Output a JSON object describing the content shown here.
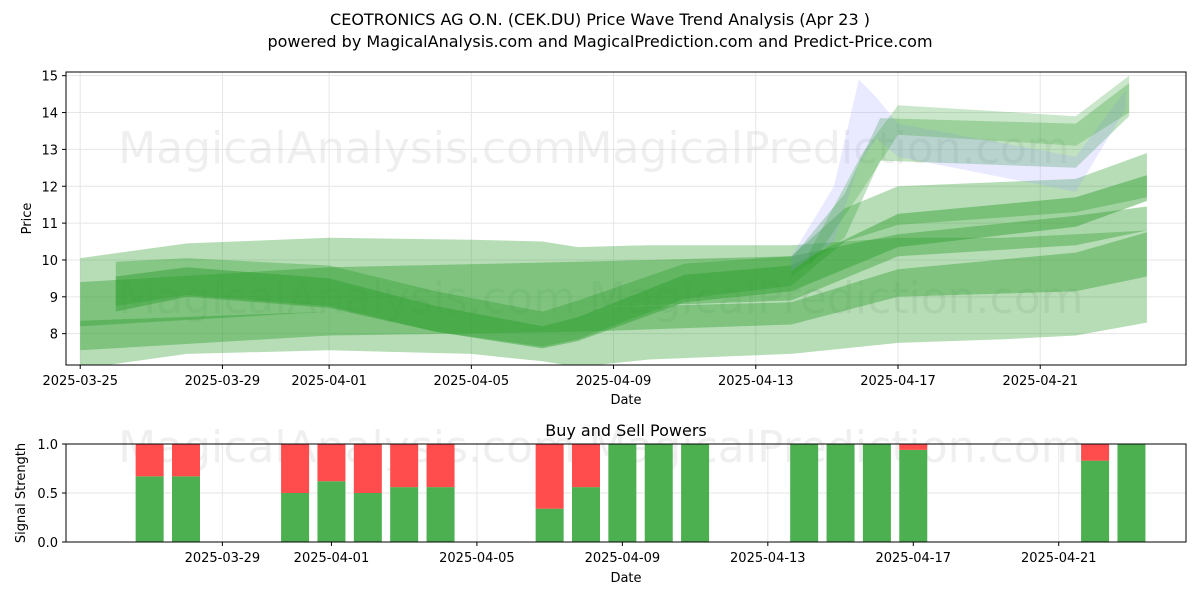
{
  "title": "CEOTRONICS AG O.N. (CEK.DU) Price Wave Trend Analysis (Apr 23 )",
  "subtitle": "powered by MagicalAnalysis.com and MagicalPrediction.com and Predict-Price.com",
  "watermarks": [
    "MagicalAnalysis.com",
    "MagicalPrediction.com"
  ],
  "colors": {
    "green_band": "#2e9e2e",
    "blue_band": "#9aa0ff",
    "buy": "#4caf50",
    "sell": "#ff4c4c"
  },
  "chart_data": [
    {
      "type": "area",
      "title": "",
      "xlabel": "Date",
      "ylabel": "Price",
      "xlim": [
        "2025-03-24.6",
        "2025-04-25.1"
      ],
      "ylim": [
        7.15,
        15.1
      ],
      "x_ticks": [
        "2025-03-25",
        "2025-03-29",
        "2025-04-01",
        "2025-04-05",
        "2025-04-09",
        "2025-04-13",
        "2025-04-17",
        "2025-04-21"
      ],
      "y_ticks": [
        8,
        9,
        10,
        11,
        12,
        13,
        14,
        15
      ],
      "grid": true,
      "series": [
        {
          "color": "green",
          "opacity": 0.35,
          "x": [
            "2025-03-25",
            "2025-03-28",
            "2025-04-01",
            "2025-04-05",
            "2025-04-07",
            "2025-04-08",
            "2025-04-10",
            "2025-04-14",
            "2025-04-17",
            "2025-04-20",
            "2025-04-22",
            "2025-04-24"
          ],
          "upper": [
            10.05,
            10.45,
            10.6,
            10.55,
            10.5,
            10.35,
            10.4,
            10.4,
            10.6,
            10.6,
            10.7,
            10.8
          ],
          "lower": [
            7.05,
            7.45,
            7.55,
            7.45,
            7.25,
            7.1,
            7.3,
            7.45,
            7.75,
            7.85,
            7.95,
            8.3
          ]
        },
        {
          "color": "green",
          "opacity": 0.4,
          "x": [
            "2025-03-25",
            "2025-04-01",
            "2025-04-08",
            "2025-04-14",
            "2025-04-17",
            "2025-04-22",
            "2025-04-24"
          ],
          "upper": [
            8.35,
            8.6,
            8.7,
            8.85,
            9.75,
            10.2,
            10.75
          ],
          "lower": [
            7.55,
            7.95,
            8.05,
            8.25,
            9.0,
            9.15,
            9.55
          ]
        },
        {
          "color": "green",
          "opacity": 0.4,
          "x": [
            "2025-03-25",
            "2025-04-01",
            "2025-04-08",
            "2025-04-14",
            "2025-04-17",
            "2025-04-22",
            "2025-04-24"
          ],
          "upper": [
            9.4,
            9.8,
            9.95,
            10.1,
            10.7,
            11.2,
            11.45
          ],
          "lower": [
            8.2,
            8.6,
            8.7,
            8.9,
            10.1,
            10.4,
            10.8
          ]
        },
        {
          "color": "green",
          "opacity": 0.45,
          "x": [
            "2025-03-26",
            "2025-03-28",
            "2025-04-01",
            "2025-04-04",
            "2025-04-07",
            "2025-04-08",
            "2025-04-11",
            "2025-04-14",
            "2025-04-17",
            "2025-04-22",
            "2025-04-24"
          ],
          "upper": [
            9.55,
            9.8,
            9.5,
            8.75,
            8.2,
            8.45,
            9.6,
            9.85,
            11.25,
            11.7,
            12.3
          ],
          "lower": [
            8.6,
            9.0,
            8.7,
            8.05,
            7.6,
            7.8,
            8.85,
            9.15,
            10.35,
            10.9,
            11.6
          ]
        },
        {
          "color": "green",
          "opacity": 0.35,
          "x": [
            "2025-03-26",
            "2025-03-28",
            "2025-04-01",
            "2025-04-04",
            "2025-04-07",
            "2025-04-08",
            "2025-04-11",
            "2025-04-14",
            "2025-04-15.5",
            "2025-04-17",
            "2025-04-22",
            "2025-04-24"
          ],
          "upper": [
            9.95,
            10.05,
            9.85,
            9.15,
            8.6,
            8.9,
            9.9,
            10.1,
            11.4,
            12.0,
            12.2,
            12.9
          ],
          "lower": [
            8.75,
            9.05,
            8.75,
            8.05,
            7.65,
            7.85,
            8.95,
            9.3,
            10.5,
            10.95,
            11.3,
            11.7
          ]
        },
        {
          "color": "green",
          "opacity": 0.3,
          "x": [
            "2025-04-14",
            "2025-04-15.5",
            "2025-04-16.5",
            "2025-04-22",
            "2025-04-23.5"
          ],
          "upper": [
            10.05,
            11.8,
            13.85,
            13.7,
            14.8
          ],
          "lower": [
            9.55,
            10.6,
            12.7,
            12.5,
            13.9
          ]
        },
        {
          "color": "blue",
          "opacity": 0.22,
          "x": [
            "2025-04-14",
            "2025-04-15.2",
            "2025-04-15.9",
            "2025-04-16.4",
            "2025-04-17",
            "2025-04-22",
            "2025-04-23.4"
          ],
          "upper": [
            10.1,
            12.0,
            14.9,
            14.4,
            13.7,
            12.8,
            14.6
          ],
          "lower": [
            9.7,
            10.5,
            12.6,
            13.3,
            12.8,
            11.85,
            14.1
          ]
        },
        {
          "color": "green",
          "opacity": 0.25,
          "x": [
            "2025-04-14.5",
            "2025-04-16",
            "2025-04-17",
            "2025-04-22",
            "2025-04-23.5"
          ],
          "upper": [
            10.2,
            12.9,
            14.2,
            13.9,
            15.0
          ],
          "lower": [
            9.8,
            11.9,
            13.4,
            13.1,
            14.0
          ]
        }
      ]
    },
    {
      "type": "bar",
      "title": "Buy and Sell Powers",
      "xlabel": "Date",
      "ylabel": "Signal Strength",
      "ylim": [
        0,
        1
      ],
      "y_ticks": [
        "0.0",
        "0.5",
        "1.0"
      ],
      "x_ticks": [
        "2025-03-29",
        "2025-04-01",
        "2025-04-05",
        "2025-04-09",
        "2025-04-13",
        "2025-04-17",
        "2025-04-21"
      ],
      "grid": true,
      "series": [
        {
          "name": "Buy",
          "color": "#4caf50"
        },
        {
          "name": "Sell",
          "color": "#ff4c4c"
        }
      ],
      "categories": [
        "2025-03-27",
        "2025-03-28",
        "2025-03-31",
        "2025-04-01",
        "2025-04-02",
        "2025-04-03",
        "2025-04-04",
        "2025-04-07",
        "2025-04-08",
        "2025-04-09",
        "2025-04-10",
        "2025-04-11",
        "2025-04-14",
        "2025-04-15",
        "2025-04-16",
        "2025-04-17",
        "2025-04-22",
        "2025-04-23"
      ],
      "buy": [
        0.67,
        0.67,
        0.5,
        0.62,
        0.5,
        0.56,
        0.56,
        0.34,
        0.56,
        1.0,
        1.0,
        1.0,
        1.0,
        1.0,
        1.0,
        0.94,
        0.83,
        1.0
      ],
      "sell": [
        0.33,
        0.33,
        0.5,
        0.38,
        0.5,
        0.44,
        0.44,
        0.66,
        0.44,
        0.0,
        0.0,
        0.0,
        0.0,
        0.0,
        0.0,
        0.06,
        0.17,
        0.0
      ]
    }
  ]
}
